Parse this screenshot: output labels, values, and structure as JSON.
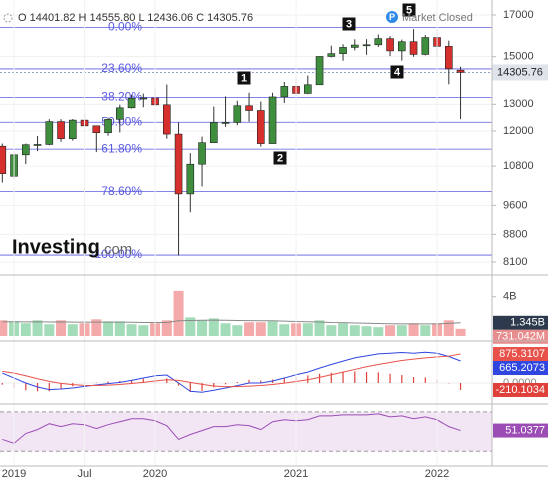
{
  "chart_data": [
    {
      "type": "candlestick",
      "ohlc_text": "O 14401.82 H 14555.80 L 12436.06 C 14305.76",
      "status": "Market Closed",
      "status_icon": "P",
      "watermark": [
        "Investing",
        ".com"
      ],
      "open": [
        11465,
        10477,
        11173,
        11516,
        11526,
        12344,
        11727,
        12399,
        12189,
        11939,
        12428,
        12866,
        13236,
        13249,
        12981,
        11890,
        9936,
        10862,
        11587,
        12311,
        12313,
        12945,
        12761,
        11556,
        13291,
        13719,
        13433,
        13786,
        15008,
        15136,
        15421,
        15531,
        15544,
        15835,
        15261,
        15688,
        15100,
        15885,
        15471,
        14401.82
      ],
      "high": [
        11557,
        11206,
        11557,
        11823,
        12435,
        12436,
        12438,
        12656,
        12199,
        12494,
        12987,
        13374,
        13425,
        13640,
        13795,
        12315,
        11230,
        11801,
        12913,
        13313,
        13140,
        13460,
        13109,
        13460,
        13903,
        14131,
        14169,
        15008,
        15501,
        15568,
        15803,
        15810,
        16030,
        15951,
        15789,
        16290,
        16003,
        16285,
        15736,
        14555.8
      ],
      "low": [
        10279,
        10386,
        10864,
        11299,
        11500,
        11620,
        11660,
        12145,
        11266,
        11833,
        11948,
        12839,
        12887,
        12948,
        11725,
        8255,
        9404,
        10160,
        11576,
        12150,
        12212,
        12339,
        11450,
        11557,
        13055,
        13310,
        13403,
        13802,
        14965,
        14816,
        15284,
        15083,
        15443,
        15024,
        14819,
        14997,
        15056,
        14998,
        13807,
        12436.06
      ],
      "close": [
        10559,
        11173,
        11516,
        11526,
        12344,
        11727,
        12399,
        12189,
        11939,
        12428,
        12866,
        13236,
        13249,
        12981,
        11890,
        9936,
        10862,
        11587,
        12311,
        12313,
        12945,
        12761,
        11556,
        13291,
        13719,
        13433,
        13786,
        15008,
        15136,
        15421,
        15531,
        15544,
        15835,
        15261,
        15688,
        15100,
        15885,
        15471,
        14461,
        14305.76
      ],
      "up_color": "#3e8e3e",
      "down_color": "#d6302e",
      "ylim": [
        7860,
        17780
      ],
      "log_scale": true,
      "grid": true,
      "yticks": [
        17000,
        15000,
        13000,
        12000,
        10800,
        9600,
        8800,
        8100
      ],
      "last_price": 14305.76,
      "fib_color": "#5a5ae0",
      "fib_levels": [
        {
          "value": 16370,
          "label": "0.00%"
        },
        {
          "value": 14458,
          "label": "23.60%"
        },
        {
          "value": 13276,
          "label": "38.20%"
        },
        {
          "value": 12320,
          "label": "50.00%"
        },
        {
          "value": 11364,
          "label": "61.80%"
        },
        {
          "value": 10003,
          "label": "78.60%"
        },
        {
          "value": 8270,
          "label": "100.00%"
        }
      ],
      "annotations": [
        "1",
        "2",
        "3",
        "4",
        "5"
      ]
    },
    {
      "type": "bar",
      "values": [
        1.6,
        1.5,
        1.3,
        1.6,
        1.2,
        1.6,
        1.2,
        1.3,
        1.7,
        1.5,
        1.5,
        1.2,
        1.1,
        1.3,
        1.6,
        4.6,
        1.9,
        1.6,
        1.8,
        1.3,
        1.1,
        1.4,
        1.4,
        1.5,
        1.2,
        1.3,
        1.3,
        1.6,
        1.1,
        1.3,
        1.1,
        1.0,
        0.9,
        1.1,
        1.1,
        1.3,
        1.1,
        1.3,
        1.6,
        0.731042
      ],
      "value_labels": [
        null,
        null,
        null,
        null,
        null,
        null,
        null,
        null,
        null,
        null,
        null,
        null,
        null,
        null,
        null,
        null,
        null,
        null,
        null,
        null,
        null,
        null,
        null,
        null,
        null,
        null,
        null,
        null,
        null,
        null,
        null,
        null,
        null,
        null,
        null,
        null,
        null,
        null,
        null,
        "731.042M"
      ],
      "up_color": "#a3dcb8",
      "down_color": "#f4aaaa",
      "ma": {
        "color": "#8a8a8a",
        "values": [
          1.45,
          1.45,
          1.44,
          1.45,
          1.43,
          1.44,
          1.42,
          1.41,
          1.42,
          1.42,
          1.42,
          1.4,
          1.38,
          1.37,
          1.38,
          1.55,
          1.58,
          1.6,
          1.62,
          1.6,
          1.58,
          1.57,
          1.55,
          1.55,
          1.52,
          1.48,
          1.45,
          1.43,
          1.38,
          1.36,
          1.32,
          1.3,
          1.27,
          1.25,
          1.24,
          1.24,
          1.23,
          1.24,
          1.28,
          1.345
        ],
        "value_labels": [
          null,
          null,
          null,
          null,
          null,
          null,
          null,
          null,
          null,
          null,
          null,
          null,
          null,
          null,
          null,
          null,
          null,
          null,
          null,
          null,
          null,
          null,
          null,
          null,
          null,
          null,
          null,
          null,
          null,
          null,
          null,
          null,
          null,
          null,
          null,
          null,
          null,
          null,
          null,
          "1.345B"
        ]
      },
      "ylim": [
        0,
        5.4
      ],
      "yticks": [
        {
          "value": 4,
          "label": "4B"
        }
      ]
    },
    {
      "type": "line",
      "series": [
        {
          "color": "#2f46e0",
          "values": [
            300,
            150,
            0,
            -120,
            -200,
            -180,
            -150,
            -100,
            -60,
            -20,
            20,
            80,
            150,
            220,
            240,
            0,
            -250,
            -280,
            -220,
            -150,
            -80,
            0,
            0,
            60,
            150,
            250,
            330,
            450,
            560,
            660,
            760,
            820,
            880,
            900,
            920,
            900,
            930,
            900,
            800,
            665.2073
          ]
        },
        {
          "color": "#e8524a",
          "values": [
            350,
            300,
            220,
            130,
            50,
            -10,
            -50,
            -70,
            -75,
            -65,
            -45,
            -15,
            20,
            60,
            100,
            80,
            20,
            -40,
            -90,
            -110,
            -110,
            -95,
            -75,
            -45,
            -5,
            45,
            100,
            170,
            250,
            330,
            410,
            490,
            560,
            620,
            680,
            720,
            760,
            790,
            810,
            875.3107
          ]
        }
      ],
      "histogram": {
        "color": "#e0403a",
        "values": [
          -50,
          -150,
          -220,
          -250,
          -250,
          -170,
          -100,
          -30,
          15,
          45,
          65,
          95,
          130,
          160,
          140,
          -80,
          -270,
          -240,
          -130,
          -40,
          30,
          95,
          75,
          105,
          155,
          205,
          230,
          280,
          310,
          330,
          350,
          330,
          320,
          280,
          240,
          180,
          170,
          110,
          -10,
          -210.1034
        ]
      },
      "ylim": [
        -513,
        1178
      ],
      "yticks": [
        {
          "value": 0,
          "label": "0.0000"
        }
      ]
    },
    {
      "type": "line",
      "values": [
        42,
        38,
        48,
        52,
        58,
        55,
        58,
        57,
        53,
        57,
        60,
        63,
        63,
        61,
        56,
        42,
        47,
        51,
        55,
        55,
        57,
        56,
        52,
        60,
        62,
        61,
        62,
        66,
        66,
        67,
        67,
        67,
        68,
        65,
        66,
        63,
        65,
        62,
        55,
        51.0377
      ],
      "color": "#9b4db5",
      "band_color": "#f2e6f5",
      "bands": [
        30,
        70
      ],
      "ylim": [
        16,
        75
      ],
      "categories": [
        null,
        "2019",
        null,
        null,
        null,
        null,
        null,
        "Jul",
        null,
        null,
        null,
        null,
        null,
        "2020",
        null,
        null,
        null,
        null,
        null,
        null,
        null,
        null,
        null,
        null,
        null,
        "2021",
        null,
        null,
        null,
        null,
        null,
        null,
        null,
        null,
        null,
        null,
        null,
        "2022",
        null,
        null
      ]
    }
  ]
}
